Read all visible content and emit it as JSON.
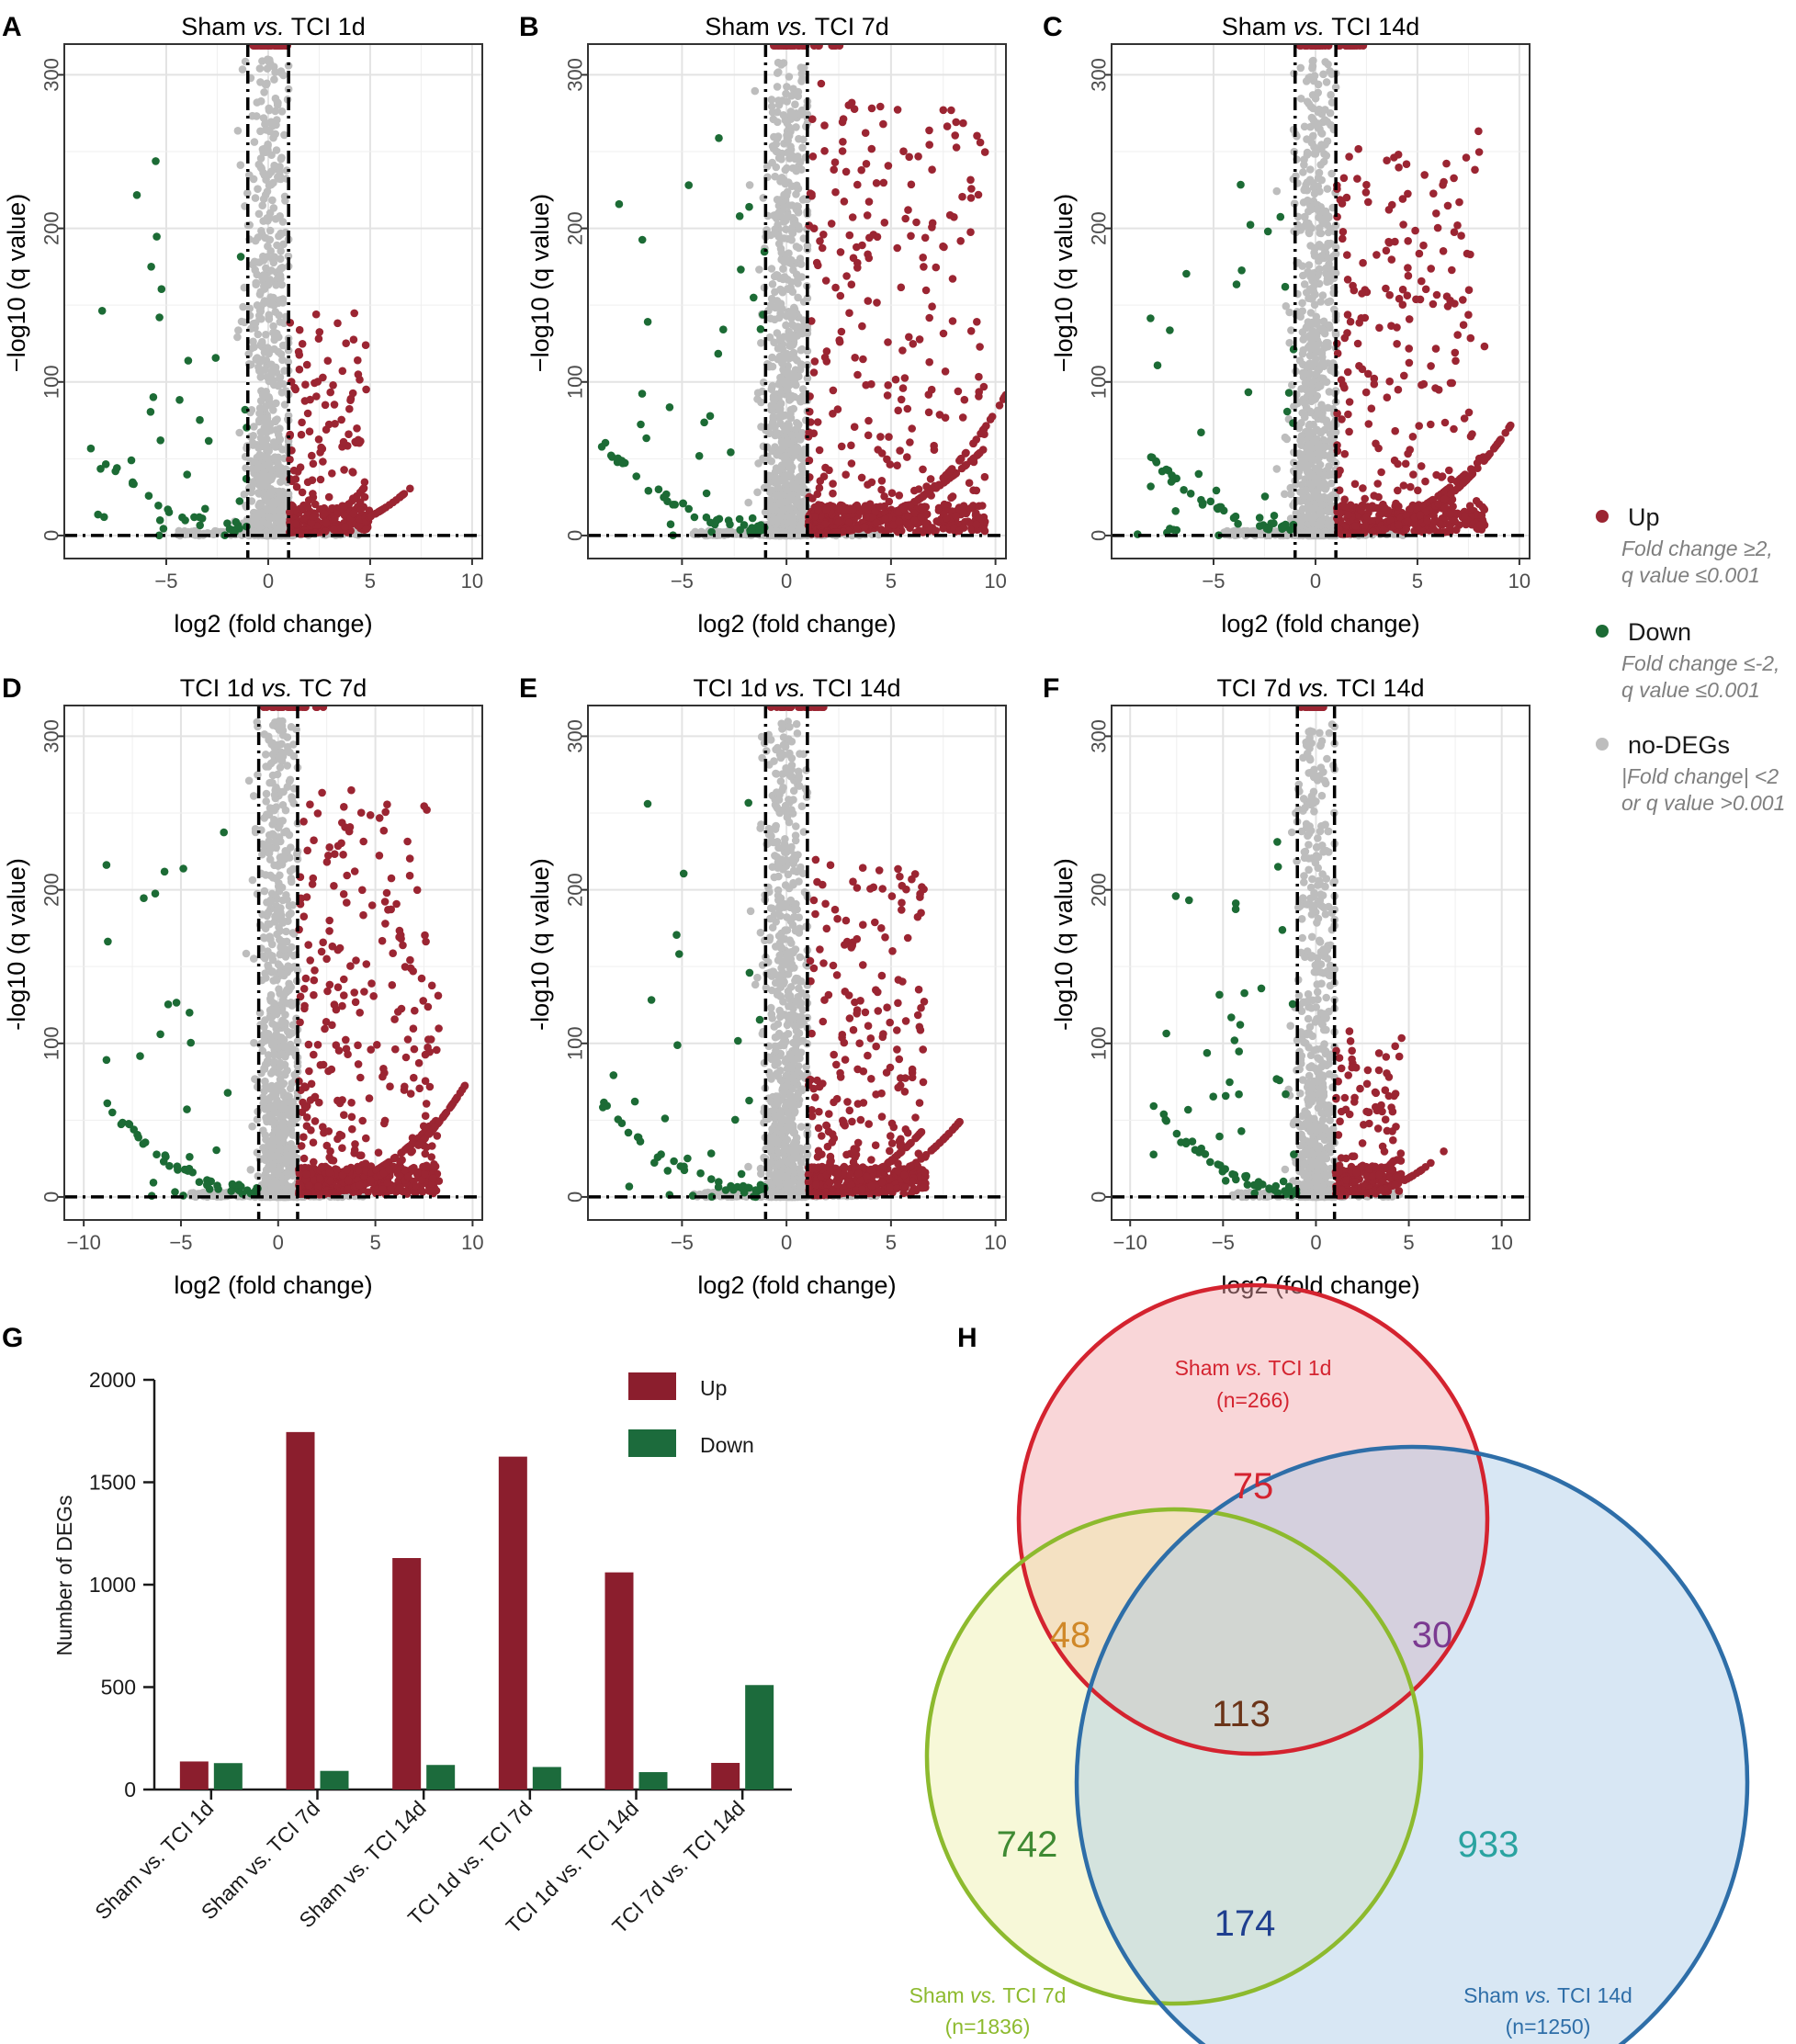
{
  "panel_letters": [
    "A",
    "B",
    "C",
    "D",
    "E",
    "F",
    "G",
    "H"
  ],
  "volcano": {
    "xlabel": "log2 (fold change)",
    "ylabel": "−log10 (q value)",
    "ylabel_alt": "-log10 (q value)",
    "legend": {
      "up": {
        "label": "Up",
        "sub1": "Fold change ≥2,",
        "sub2": "q value ≤0.001",
        "color": "#9b2532"
      },
      "down": {
        "label": "Down",
        "sub1": "Fold change ≤-2,",
        "sub2": "q value ≤0.001",
        "color": "#1c6b35"
      },
      "nodeg": {
        "label": "no-DEGs",
        "sub1": "|Fold change| <2",
        "sub2": "or q value >0.001",
        "color": "#bdbdbd"
      }
    }
  },
  "chart_data": [
    {
      "type": "scatter",
      "panel": "A",
      "title_pre": "Sham ",
      "title_em": "vs.",
      "title_post": " TCI 1d",
      "xlim": [
        -10,
        10.5
      ],
      "ylim": [
        -15,
        320
      ],
      "xticks": [
        -5,
        0,
        5,
        10
      ],
      "yticks": [
        0,
        100,
        200,
        300
      ],
      "xticklabels": [
        "−5",
        "0",
        "5",
        "10"
      ],
      "yticklabels": [
        "0",
        "100",
        "200",
        "300"
      ],
      "thresholds": {
        "log2fc": [
          -1,
          1
        ],
        "neglog10q": 0
      },
      "deg_counts": {
        "up": 137,
        "down": 129
      },
      "density": {
        "up": 0.45,
        "down": 0.4,
        "grey": 1.0,
        "upSpread": 0.5
      }
    },
    {
      "type": "scatter",
      "panel": "B",
      "title_pre": "Sham ",
      "title_em": "vs.",
      "title_post": " TCI 7d",
      "xlim": [
        -9.5,
        10.5
      ],
      "ylim": [
        -15,
        320
      ],
      "xticks": [
        -5,
        0,
        5,
        10
      ],
      "yticks": [
        0,
        100,
        200,
        300
      ],
      "xticklabels": [
        "−5",
        "0",
        "5",
        "10"
      ],
      "yticklabels": [
        "0",
        "100",
        "200",
        "300"
      ],
      "thresholds": {
        "log2fc": [
          -1,
          1
        ],
        "neglog10q": 0
      },
      "deg_counts": {
        "up": 1745,
        "down": 91
      },
      "density": {
        "up": 1.0,
        "down": 0.5,
        "grey": 1.3,
        "upSpread": 1.0
      }
    },
    {
      "type": "scatter",
      "panel": "C",
      "title_pre": "Sham ",
      "title_em": "vs.",
      "title_post": " TCI 14d",
      "xlim": [
        -10,
        10.5
      ],
      "ylim": [
        -15,
        320
      ],
      "xticks": [
        -5,
        0,
        5,
        10
      ],
      "yticks": [
        0,
        100,
        200,
        300
      ],
      "xticklabels": [
        "−5",
        "0",
        "5",
        "10"
      ],
      "yticklabels": [
        "0",
        "100",
        "200",
        "300"
      ],
      "thresholds": {
        "log2fc": [
          -1,
          1
        ],
        "neglog10q": 0
      },
      "deg_counts": {
        "up": 1130,
        "down": 120
      },
      "density": {
        "up": 0.8,
        "down": 0.5,
        "grey": 1.2,
        "upSpread": 0.9
      }
    },
    {
      "type": "scatter",
      "panel": "D",
      "title_pre": "TCI 1d ",
      "title_em": "vs.",
      "title_post": " TC 7d",
      "xlim": [
        -11,
        10.5
      ],
      "ylim": [
        -15,
        320
      ],
      "xticks": [
        -10,
        -5,
        0,
        5,
        10
      ],
      "yticks": [
        0,
        100,
        200,
        300
      ],
      "xticklabels": [
        "−10",
        "−5",
        "0",
        "5",
        "10"
      ],
      "yticklabels": [
        "0",
        "100",
        "200",
        "300"
      ],
      "thresholds": {
        "log2fc": [
          -1,
          1
        ],
        "neglog10q": 0
      },
      "deg_counts": {
        "up": 1625,
        "down": 110
      },
      "density": {
        "up": 0.95,
        "down": 0.5,
        "grey": 1.2,
        "upSpread": 0.9
      }
    },
    {
      "type": "scatter",
      "panel": "E",
      "title_pre": "TCI 1d ",
      "title_em": " vs.",
      "title_post": " TCI 14d",
      "xlim": [
        -9.5,
        10.5
      ],
      "ylim": [
        -15,
        320
      ],
      "xticks": [
        -5,
        0,
        5,
        10
      ],
      "yticks": [
        0,
        100,
        200,
        300
      ],
      "xticklabels": [
        "−5",
        "0",
        "5",
        "10"
      ],
      "yticklabels": [
        "0",
        "100",
        "200",
        "300"
      ],
      "thresholds": {
        "log2fc": [
          -1,
          1
        ],
        "neglog10q": 0
      },
      "deg_counts": {
        "up": 1060,
        "down": 85
      },
      "density": {
        "up": 0.8,
        "down": 0.45,
        "grey": 1.2,
        "upSpread": 0.75
      }
    },
    {
      "type": "scatter",
      "panel": "F",
      "title_pre": "TCI 7d ",
      "title_em": "vs.",
      "title_post": " TCI 14d",
      "xlim": [
        -11,
        11.5
      ],
      "ylim": [
        -15,
        320
      ],
      "xticks": [
        -10,
        -5,
        0,
        5,
        10
      ],
      "yticks": [
        0,
        100,
        200,
        300
      ],
      "xticklabels": [
        "−10",
        "−5",
        "0",
        "5",
        "10"
      ],
      "yticklabels": [
        "0",
        "100",
        "200",
        "300"
      ],
      "thresholds": {
        "log2fc": [
          -1,
          1
        ],
        "neglog10q": 0
      },
      "deg_counts": {
        "up": 130,
        "down": 510
      },
      "density": {
        "up": 0.35,
        "down": 0.55,
        "grey": 0.9,
        "upSpread": 0.35
      }
    },
    {
      "type": "bar",
      "panel": "G",
      "ylabel": "Number of DEGs",
      "ylim": [
        0,
        2000
      ],
      "yticks": [
        0,
        500,
        1000,
        1500,
        2000
      ],
      "yticklabels": [
        "0",
        "500",
        "1000",
        "1500",
        "2000"
      ],
      "categories": [
        "Sham vs. TCI 1d",
        "Sham vs. TCI 7d",
        "Sham vs. TCI 14d",
        "TCI 1d vs. TCI 7d",
        "TCI 1d vs. TCI 14d",
        "TCI 7d vs. TCI 14d"
      ],
      "series": [
        {
          "name": "Up",
          "color": "#8b1e2d",
          "values": [
            137,
            1745,
            1130,
            1625,
            1060,
            130
          ]
        },
        {
          "name": "Down",
          "color": "#1c6b3c",
          "values": [
            129,
            91,
            120,
            110,
            85,
            510
          ]
        }
      ]
    },
    {
      "type": "venn",
      "panel": "H",
      "sets": [
        {
          "name_pre": "Sham ",
          "name_em": "vs.",
          "name_post": " TCI 1d",
          "size_label": "(n=266)",
          "color": "#d4232f",
          "fill": "#f2a5a8"
        },
        {
          "name_pre": "Sham ",
          "name_em": "vs.",
          "name_post": " TCI 7d",
          "size_label": "(n=1836)",
          "color": "#8dba2e",
          "fill": "#eeefa8"
        },
        {
          "name_pre": "Sham ",
          "name_em": "vs.",
          "name_post": " TCI 14d",
          "size_label": "(n=1250)",
          "color": "#2e6ea8",
          "fill": "#a9c9e6"
        }
      ],
      "regions": [
        {
          "label": "75",
          "value": 75,
          "color": "#d4232f"
        },
        {
          "label": "48",
          "value": 48,
          "color": "#d08828"
        },
        {
          "label": "30",
          "value": 30,
          "color": "#7b3a91"
        },
        {
          "label": "113",
          "value": 113,
          "color": "#6b3418"
        },
        {
          "label": "742",
          "value": 742,
          "color": "#3f8a33"
        },
        {
          "label": "933",
          "value": 933,
          "color": "#2aa3a0"
        },
        {
          "label": "174",
          "value": 174,
          "color": "#1f3f8f"
        }
      ]
    }
  ]
}
